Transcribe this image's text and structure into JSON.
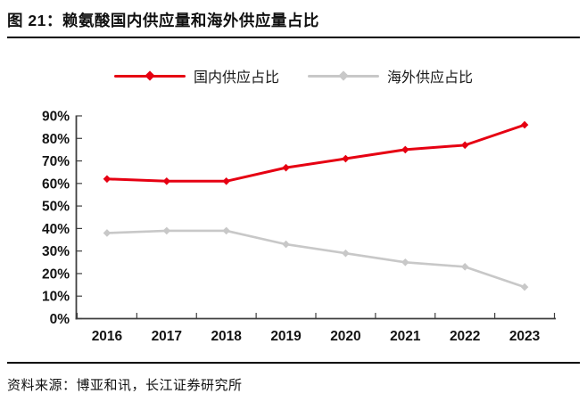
{
  "figure": {
    "title": "图 21：赖氨酸国内供应量和海外供应量占比",
    "source": "资料来源：博亚和讯，长江证券研究所"
  },
  "chart_data": {
    "type": "line",
    "title": "赖氨酸国内供应量和海外供应量占比",
    "categories": [
      "2016",
      "2017",
      "2018",
      "2019",
      "2020",
      "2021",
      "2022",
      "2023"
    ],
    "series": [
      {
        "id": "domestic",
        "name": "国内供应占比",
        "color": "#e60012",
        "values": [
          62,
          61,
          61,
          67,
          71,
          75,
          77,
          86
        ]
      },
      {
        "id": "overseas",
        "name": "海外供应占比",
        "color": "#c8c8c8",
        "values": [
          38,
          39,
          39,
          33,
          29,
          25,
          23,
          14
        ]
      }
    ],
    "xlabel": "",
    "ylabel": "",
    "ylim": [
      0,
      90
    ],
    "y_tick_step": 10,
    "y_tick_labels": [
      "0%",
      "10%",
      "20%",
      "30%",
      "40%",
      "50%",
      "60%",
      "70%",
      "80%",
      "90%"
    ],
    "y_tick_suffix": "%",
    "marker": "diamond",
    "grid": false,
    "legend_position": "top-center",
    "axis_color": "#3f3f3f",
    "label_color": "#141414"
  }
}
